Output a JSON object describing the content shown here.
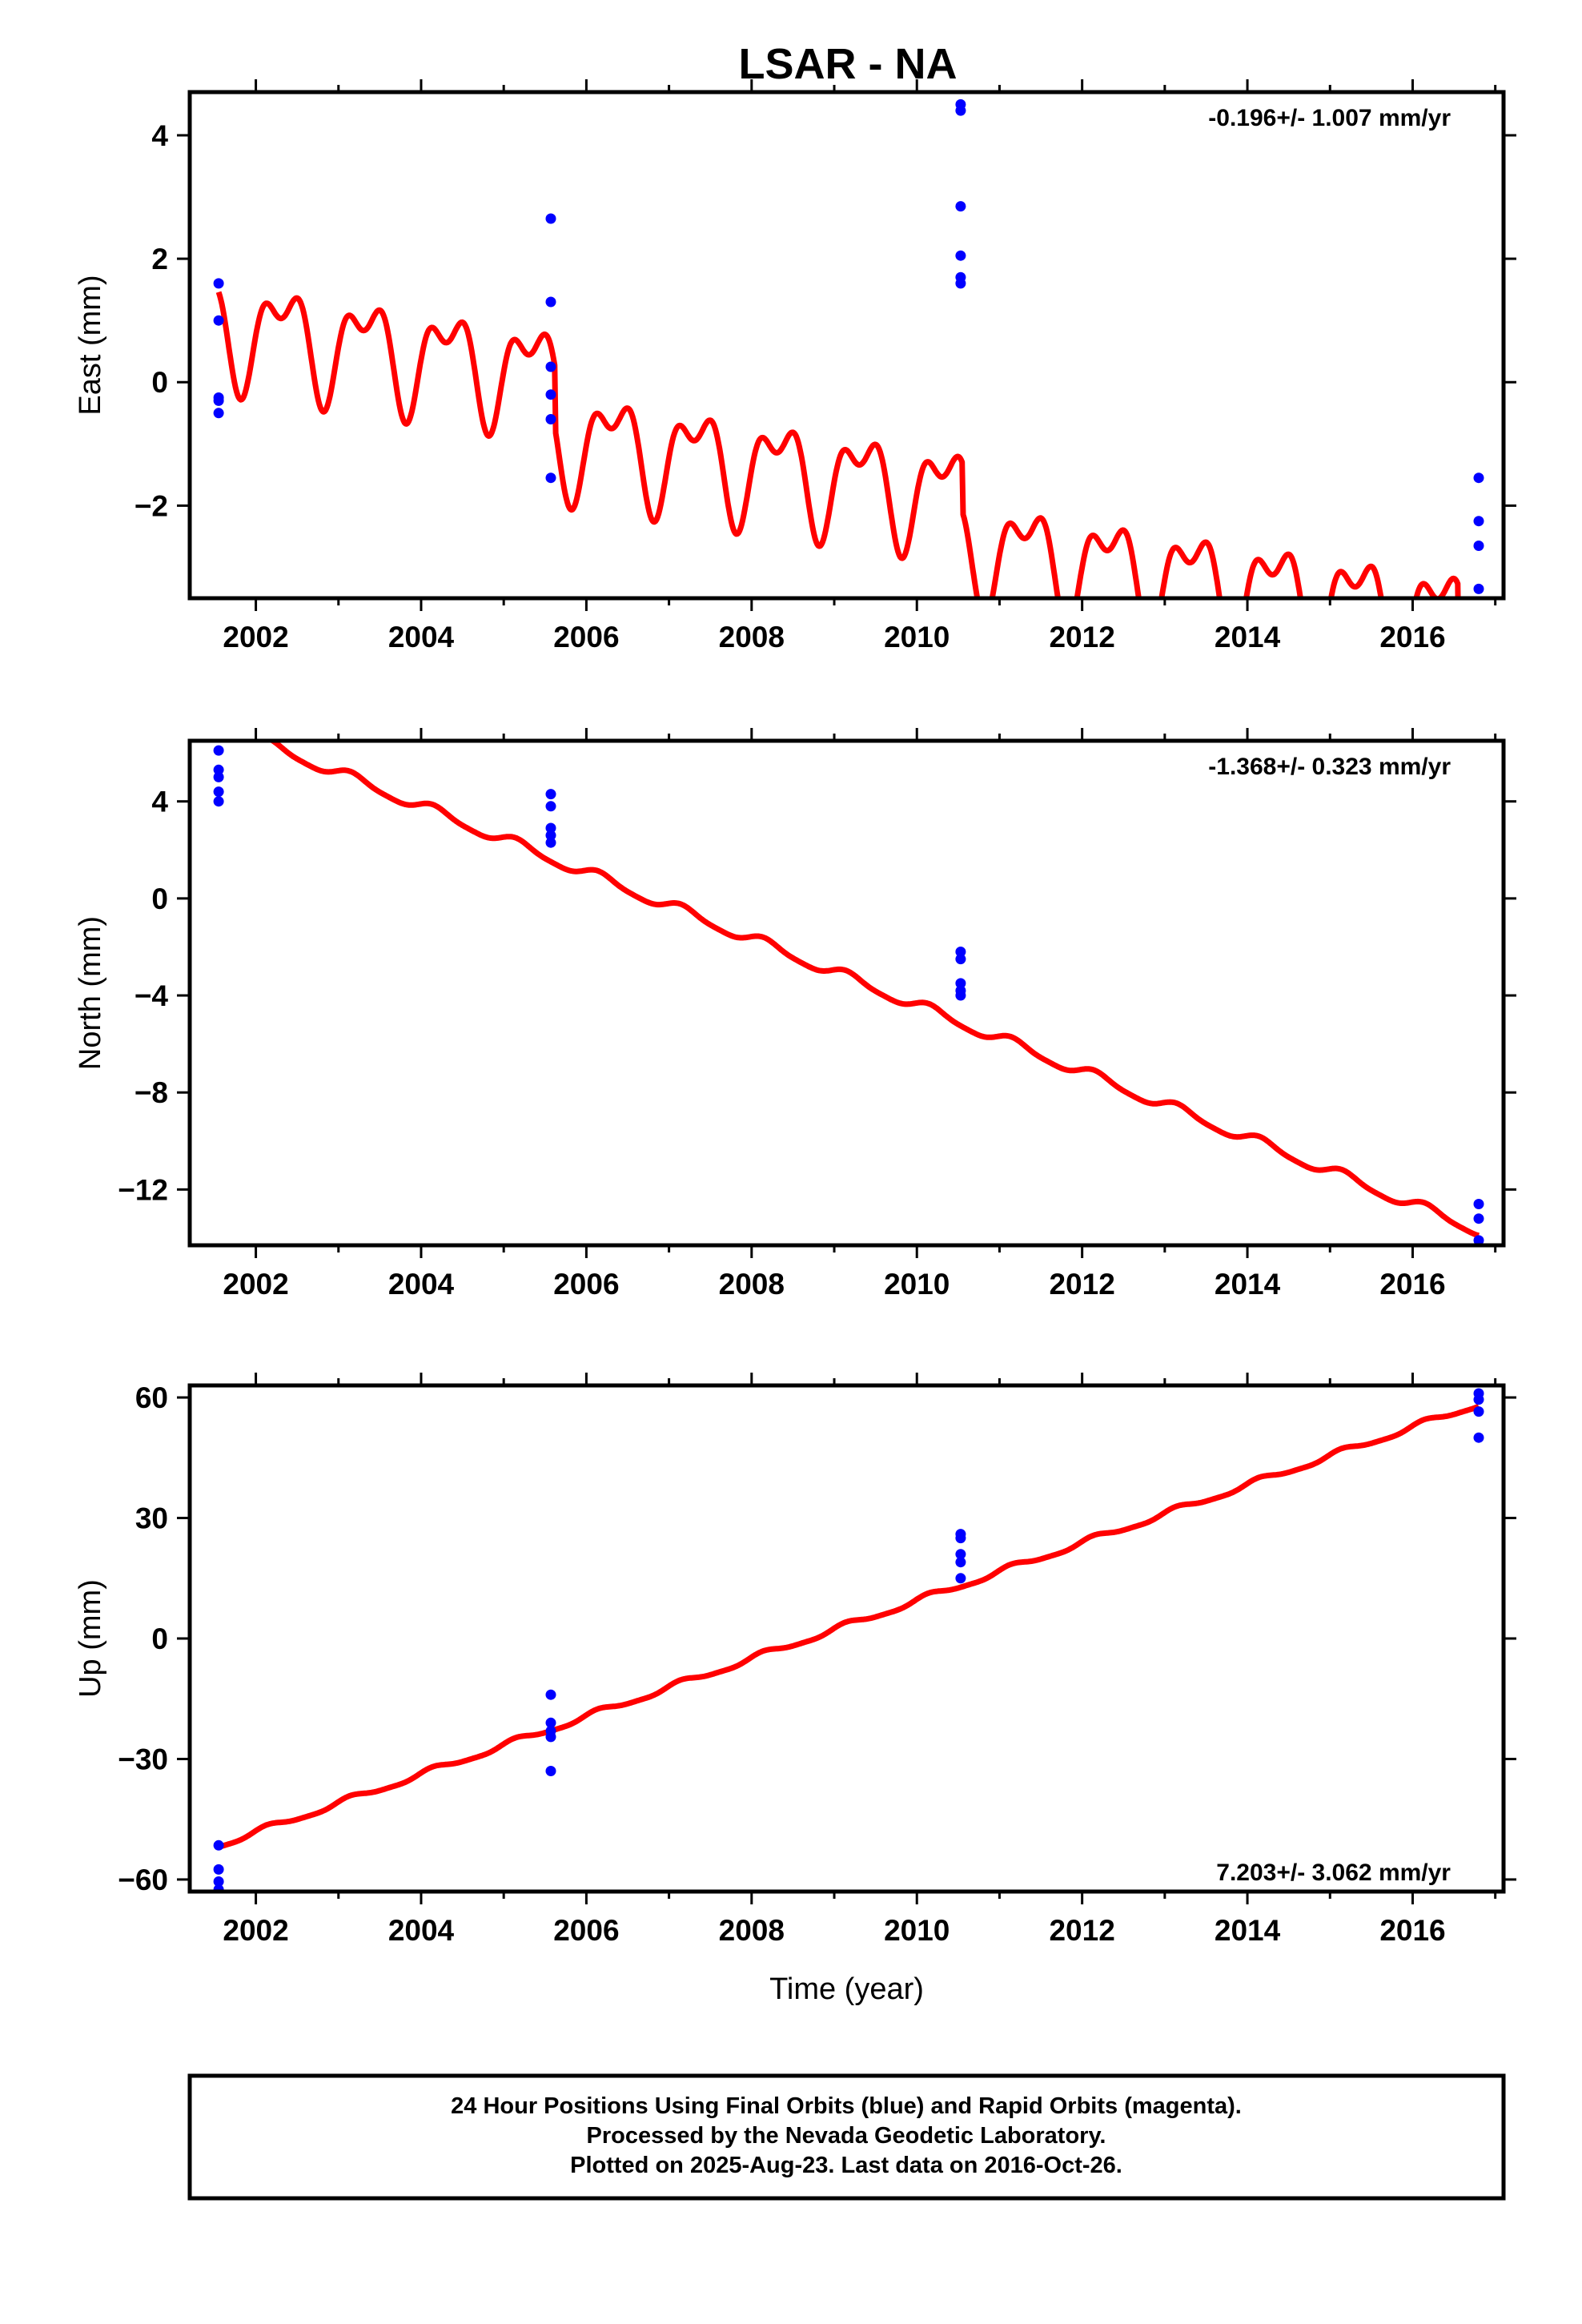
{
  "title": "LSAR - NA",
  "colors": {
    "final_orbit_points": "#0000ff",
    "model_fit": "#ff0000",
    "frame": "#000000"
  },
  "chart_data": [
    {
      "type": "scatter",
      "component": "East",
      "ylabel": "East (mm)",
      "xlabel": "",
      "xlim": [
        2001.2,
        2017.1
      ],
      "ylim": [
        -3.5,
        4.7
      ],
      "xticks": [
        2002,
        2004,
        2006,
        2008,
        2010,
        2012,
        2014,
        2016
      ],
      "xtick_labels": [
        "2002",
        "2004",
        "2006",
        "2008",
        "2010",
        "2012",
        "2014",
        "2016"
      ],
      "yticks": [
        -2,
        0,
        2,
        4
      ],
      "ytick_labels": [
        "−2",
        "0",
        "2",
        "4"
      ],
      "rate_label": "-0.196+/- 1.007 mm/yr",
      "rate_position": "top-right",
      "grid": false,
      "series": [
        {
          "kind": "points",
          "color": "#0000ff",
          "x": [
            2001.55,
            2001.55,
            2001.55,
            2001.55,
            2001.55,
            2005.57,
            2005.57,
            2005.57,
            2005.57,
            2005.57,
            2005.57,
            2010.53,
            2010.53,
            2010.53,
            2010.53,
            2010.53,
            2010.53,
            2016.8,
            2016.8,
            2016.8,
            2016.8
          ],
          "y": [
            1.6,
            1.0,
            -0.25,
            -0.3,
            -0.5,
            2.65,
            1.3,
            0.25,
            -0.2,
            -0.6,
            -1.55,
            4.5,
            4.4,
            2.85,
            2.05,
            1.7,
            1.6,
            -1.55,
            -2.25,
            -2.65,
            -3.35
          ]
        },
        {
          "kind": "model",
          "color": "#ff0000",
          "x_range": [
            2001.55,
            2016.8
          ],
          "intercept": 0.9,
          "rate": -0.196,
          "annual": {
            "sin": 0.62,
            "cos": -0.35
          },
          "semiannual": {
            "sin": 0.3,
            "cos": 0.3
          },
          "offsets": [
            {
              "t": 2005.62,
              "dy": -1.0
            },
            {
              "t": 2010.55,
              "dy": -0.8
            },
            {
              "t": 2016.55,
              "dy": -1.2
            }
          ]
        }
      ]
    },
    {
      "type": "scatter",
      "component": "North",
      "ylabel": "North (mm)",
      "xlabel": "",
      "xlim": [
        2001.2,
        2017.1
      ],
      "ylim": [
        -14.3,
        6.5
      ],
      "xticks": [
        2002,
        2004,
        2006,
        2008,
        2010,
        2012,
        2014,
        2016
      ],
      "xtick_labels": [
        "2002",
        "2004",
        "2006",
        "2008",
        "2010",
        "2012",
        "2014",
        "2016"
      ],
      "yticks": [
        -12,
        -8,
        -4,
        0,
        4
      ],
      "ytick_labels": [
        "−12",
        "−8",
        "−4",
        "0",
        "4"
      ],
      "rate_label": "-1.368+/- 0.323 mm/yr",
      "rate_position": "top-right",
      "grid": false,
      "series": [
        {
          "kind": "points",
          "color": "#0000ff",
          "x": [
            2001.55,
            2001.55,
            2001.55,
            2001.55,
            2001.55,
            2005.57,
            2005.57,
            2005.57,
            2005.57,
            2005.57,
            2010.53,
            2010.53,
            2010.53,
            2010.53,
            2010.53,
            2016.8,
            2016.8,
            2016.8
          ],
          "y": [
            6.1,
            5.3,
            5.0,
            4.4,
            4.0,
            4.3,
            3.8,
            2.9,
            2.6,
            2.3,
            -2.2,
            -2.5,
            -3.5,
            -3.8,
            -4.0,
            -12.6,
            -13.2,
            -14.1
          ],
          "note": "right-most cluster clipped at lower frame"
        },
        {
          "kind": "model",
          "color": "#ff0000",
          "x_range": [
            2001.55,
            2016.8
          ],
          "intercept": 7.15,
          "rate": -1.368,
          "annual": {
            "sin": 0.2,
            "cos": 0.1
          },
          "semiannual": {
            "sin": 0.05,
            "cos": 0.0
          },
          "offsets": []
        }
      ]
    },
    {
      "type": "scatter",
      "component": "Up",
      "ylabel": "Up (mm)",
      "xlabel": "Time (year)",
      "xlim": [
        2001.2,
        2017.1
      ],
      "ylim": [
        -63,
        63
      ],
      "xticks": [
        2002,
        2004,
        2006,
        2008,
        2010,
        2012,
        2014,
        2016
      ],
      "xtick_labels": [
        "2002",
        "2004",
        "2006",
        "2008",
        "2010",
        "2012",
        "2014",
        "2016"
      ],
      "yticks": [
        -60,
        -30,
        0,
        30,
        60
      ],
      "ytick_labels": [
        "−60",
        "−30",
        "0",
        "30",
        "60"
      ],
      "rate_label": "7.203+/- 3.062 mm/yr",
      "rate_position": "bottom-right",
      "grid": false,
      "series": [
        {
          "kind": "points",
          "color": "#0000ff",
          "x": [
            2001.55,
            2001.55,
            2001.55,
            2001.55,
            2005.57,
            2005.57,
            2005.57,
            2005.57,
            2005.57,
            2010.53,
            2010.53,
            2010.53,
            2010.53,
            2010.53,
            2016.8,
            2016.8,
            2016.8,
            2016.8
          ],
          "y": [
            -51.5,
            -57.5,
            -60.5,
            -62.5,
            -14,
            -21,
            -23,
            -24.5,
            -33,
            26,
            25,
            21,
            19,
            15,
            61,
            59.5,
            56.5,
            50
          ],
          "note": "left-most cluster partially clipped at lower frame"
        },
        {
          "kind": "model",
          "color": "#ff0000",
          "x_range": [
            2001.55,
            2016.8
          ],
          "intercept": -51.5,
          "rate": 7.203,
          "annual": {
            "sin": 0.6,
            "cos": 0.4
          },
          "semiannual": {
            "sin": 0.2,
            "cos": 0.0
          },
          "offsets": []
        }
      ]
    }
  ],
  "footer": {
    "line1": "24 Hour Positions Using Final Orbits (blue) and Rapid Orbits (magenta).",
    "line2": "Processed by the Nevada Geodetic Laboratory.",
    "line3": "Plotted on 2025-Aug-23. Last data on 2016-Oct-26."
  }
}
